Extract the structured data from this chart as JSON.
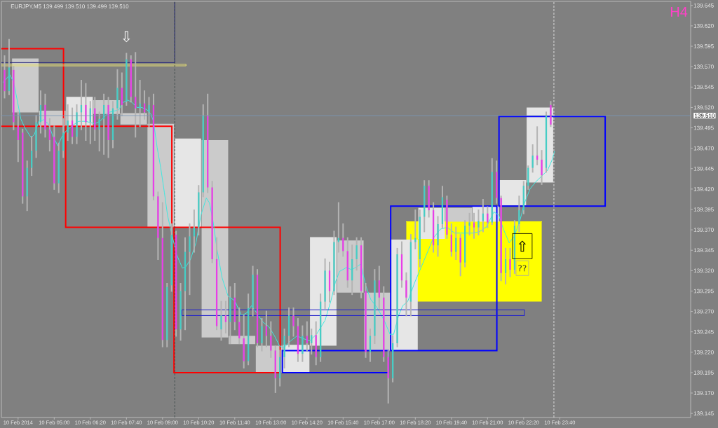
{
  "chart_data": {
    "type": "candlestick",
    "title": "EURJPY,M5 139.499 139.510 139.499 139.510",
    "xlim": [
      "2014-02-10T03:03",
      "2014-02-11T04:30"
    ],
    "ylim": [
      139.14,
      139.65
    ],
    "xticks": [
      {
        "value": "2014-02-10T03:40",
        "label": "10 Feb 2014"
      },
      {
        "value": "2014-02-10T05:00",
        "label": "10 Feb 05:00"
      },
      {
        "value": "2014-02-10T06:20",
        "label": "10 Feb 06:20"
      },
      {
        "value": "2014-02-10T07:40",
        "label": "10 Feb 07:40"
      },
      {
        "value": "2014-02-10T09:00",
        "label": "10 Feb 09:00"
      },
      {
        "value": "2014-02-10T10:20",
        "label": "10 Feb 10:20"
      },
      {
        "value": "2014-02-10T11:40",
        "label": "10 Feb 11:40"
      },
      {
        "value": "2014-02-10T13:00",
        "label": "10 Feb 13:00"
      },
      {
        "value": "2014-02-10T14:20",
        "label": "10 Feb 14:20"
      },
      {
        "value": "2014-02-10T15:40",
        "label": "10 Feb 15:40"
      },
      {
        "value": "2014-02-10T17:00",
        "label": "10 Feb 17:00"
      },
      {
        "value": "2014-02-10T18:20",
        "label": "10 Feb 18:20"
      },
      {
        "value": "2014-02-10T19:40",
        "label": "10 Feb 19:40"
      },
      {
        "value": "2014-02-10T21:00",
        "label": "10 Feb 21:00"
      },
      {
        "value": "2014-02-10T22:20",
        "label": "10 Feb 22:20"
      },
      {
        "value": "2014-02-10T23:40",
        "label": "10 Feb 23:40"
      }
    ],
    "yticks": [
      139.145,
      {
        "value": 139.17,
        "label": "139.170"
      },
      139.195,
      {
        "value": 139.22,
        "label": "139.220"
      },
      139.245,
      {
        "value": 139.27,
        "label": "139.270"
      },
      139.295,
      {
        "value": 139.32,
        "label": "139.320"
      },
      139.345,
      {
        "value": 139.37,
        "label": "139.370"
      },
      139.395,
      {
        "value": 139.42,
        "label": "139.420"
      },
      139.445,
      {
        "value": 139.47,
        "label": "139.470"
      },
      139.495,
      {
        "value": 139.52,
        "label": "139.520"
      },
      139.545,
      {
        "value": 139.57,
        "label": "139.570"
      },
      139.595,
      {
        "value": 139.62,
        "label": "139.620"
      },
      139.645
    ],
    "series": [
      {
        "type": "line",
        "x": [
          "2014-02-10T18:00",
          "2014-02-10T23:00"
        ],
        "values": [
          139.38,
          139.38
        ],
        "lower": [
          139.282,
          139.282
        ],
        "upper": [
          139.38,
          139.38
        ],
        "color": "#ffff00"
      },
      {
        "type": "candlestick",
        "x": [
          "2014-02-10T03:56",
          "2014-02-10T04:56",
          "2014-02-10T05:56",
          "2014-02-10T06:56",
          "2014-02-10T07:56",
          "2014-02-10T08:56",
          "2014-02-10T09:56",
          "2014-02-10T10:56",
          "2014-02-10T11:56",
          "2014-02-10T12:56",
          "2014-02-10T13:56",
          "2014-02-10T14:56",
          "2014-02-10T15:56",
          "2014-02-10T16:56",
          "2014-02-10T17:56",
          "2014-02-10T18:56",
          "2014-02-10T19:56",
          "2014-02-10T20:56",
          "2014-02-10T21:56",
          "2014-02-10T22:56"
        ],
        "ohlc": [
          [
            139.58,
            139.58,
            139.514,
            139.514
          ],
          [
            139.516,
            139.516,
            139.497,
            139.497
          ],
          [
            139.497,
            139.533,
            139.497,
            139.533
          ],
          [
            139.529,
            139.529,
            139.512,
            139.512
          ],
          [
            139.513,
            139.513,
            139.499,
            139.499
          ],
          [
            139.5,
            139.5,
            139.373,
            139.373
          ],
          [
            139.373,
            139.482,
            139.373,
            139.482
          ],
          [
            139.48,
            139.48,
            139.238,
            139.238
          ],
          [
            139.24,
            139.24,
            139.23,
            139.23
          ],
          [
            139.228,
            139.228,
            139.195,
            139.195
          ],
          [
            139.195,
            139.229,
            139.195,
            139.229
          ],
          [
            139.228,
            139.361,
            139.228,
            139.361
          ],
          [
            139.357,
            139.357,
            139.293,
            139.293
          ],
          [
            139.293,
            139.293,
            139.222,
            139.222
          ],
          [
            139.222,
            139.358,
            139.222,
            139.358
          ],
          [
            139.359,
            139.397,
            139.359,
            139.397
          ],
          [
            139.397,
            139.397,
            139.38,
            139.38
          ],
          [
            139.38,
            139.399,
            139.38,
            139.399
          ],
          [
            139.4,
            139.431,
            139.4,
            139.431
          ],
          [
            139.428,
            139.52,
            139.428,
            139.52
          ]
        ],
        "colors": [
          "#cbcbcb",
          "#cbcbcb",
          "#e6e6e6",
          "#cbcbcb",
          "#cbcbcb",
          "#cbcbcb",
          "#e6e6e6",
          "#cbcbcb",
          "#cbcbcb",
          "#cbcbcb",
          "#e6e6e6",
          "#e6e6e6",
          "#cbcbcb",
          "#cbcbcb",
          "#e6e6e6",
          "#e6e6e6",
          "#cbcbcb",
          "#e6e6e6",
          "#e6e6e6",
          "#e6e6e6"
        ]
      },
      {
        "type": "bar",
        "x": [
          "2014-02-10T03:23",
          "2014-02-10T07:23",
          "2014-02-10T11:23",
          "2014-02-10T15:23",
          "2014-02-10T19:23",
          "2014-02-10T23:23"
        ],
        "base": [
          139.592,
          139.497,
          139.373,
          139.195,
          139.222,
          139.399
        ],
        "values": [
          -0.095,
          -0.124,
          -0.178,
          0.027,
          0.177,
          0.11
        ],
        "colors": [
          "#ff0000",
          "#ff0000",
          "#ff0000",
          "#0000ff",
          "#0000ff",
          "#0000ff"
        ],
        "line_style": "solid"
      },
      {
        "type": "line",
        "x": [
          "2014-02-10T03:07",
          "2014-02-10T03:22",
          "2014-02-10T03:30",
          "2014-02-10T03:38",
          "2014-02-10T03:46",
          "2014-02-10T03:55",
          "2014-02-10T04:09",
          "2014-02-10T04:16",
          "2014-02-10T04:26",
          "2014-02-10T04:37",
          "2014-02-10T04:47",
          "2014-02-10T04:57",
          "2014-02-10T05:08",
          "2014-02-10T05:16",
          "2014-02-10T05:26",
          "2014-02-10T05:38",
          "2014-02-10T05:54",
          "2014-02-10T06:10",
          "2014-02-10T06:30",
          "2014-02-10T06:41",
          "2014-02-10T07:01",
          "2014-02-10T07:23",
          "2014-02-10T07:32",
          "2014-02-10T07:43",
          "2014-02-10T07:53",
          "2014-02-10T08:03",
          "2014-02-10T08:14",
          "2014-02-10T08:26",
          "2014-02-10T08:34",
          "2014-02-10T08:40",
          "2014-02-10T08:48",
          "2014-02-10T08:56",
          "2014-02-10T09:04",
          "2014-02-10T09:11",
          "2014-02-10T09:19",
          "2014-02-10T09:31",
          "2014-02-10T09:44",
          "2014-02-10T09:52",
          "2014-02-10T10:02",
          "2014-02-10T10:14",
          "2014-02-10T10:25",
          "2014-02-10T10:37",
          "2014-02-10T10:44",
          "2014-02-10T10:52",
          "2014-02-10T11:01",
          "2014-02-10T11:12",
          "2014-02-10T11:25",
          "2014-02-10T11:40",
          "2014-02-10T11:55",
          "2014-02-10T12:06",
          "2014-02-10T12:17",
          "2014-02-10T12:29",
          "2014-02-10T12:42",
          "2014-02-10T12:56",
          "2014-02-10T13:08",
          "2014-02-10T13:19",
          "2014-02-10T13:28",
          "2014-02-10T13:44",
          "2014-02-10T13:58",
          "2014-02-10T14:10",
          "2014-02-10T14:26",
          "2014-02-10T14:41",
          "2014-02-10T15:00",
          "2014-02-10T15:13",
          "2014-02-10T15:23",
          "2014-02-10T15:32",
          "2014-02-10T15:48",
          "2014-02-10T15:59",
          "2014-02-10T16:11",
          "2014-02-10T16:19",
          "2014-02-10T16:30",
          "2014-02-10T16:41",
          "2014-02-10T16:56",
          "2014-02-10T17:11",
          "2014-02-10T17:24",
          "2014-02-10T17:32",
          "2014-02-10T17:43",
          "2014-02-10T17:52",
          "2014-02-10T18:03",
          "2014-02-10T18:19",
          "2014-02-10T18:29",
          "2014-02-10T18:45",
          "2014-02-10T19:00",
          "2014-02-10T19:16",
          "2014-02-10T19:31",
          "2014-02-10T19:47",
          "2014-02-10T20:11",
          "2014-02-10T20:27",
          "2014-02-10T20:43",
          "2014-02-10T20:58",
          "2014-02-10T21:14",
          "2014-02-10T21:25",
          "2014-02-10T21:35",
          "2014-02-10T21:48",
          "2014-02-10T21:59",
          "2014-02-10T22:11",
          "2014-02-10T22:22",
          "2014-02-10T22:34",
          "2014-02-10T22:47",
          "2014-02-10T23:02",
          "2014-02-10T23:13",
          "2014-02-10T23:24",
          "2014-02-10T23:28"
        ],
        "values": [
          139.551,
          139.56,
          139.551,
          139.529,
          139.506,
          139.495,
          139.483,
          139.487,
          139.503,
          139.505,
          139.5,
          139.485,
          139.473,
          139.483,
          139.491,
          139.497,
          139.503,
          139.503,
          139.5,
          139.503,
          139.514,
          139.517,
          139.526,
          139.529,
          139.526,
          139.52,
          139.52,
          139.517,
          139.512,
          139.503,
          139.471,
          139.446,
          139.416,
          139.388,
          139.368,
          139.34,
          139.323,
          139.325,
          139.334,
          139.354,
          139.388,
          139.409,
          139.403,
          139.38,
          139.345,
          139.311,
          139.289,
          139.283,
          139.265,
          139.268,
          139.277,
          139.268,
          139.257,
          139.251,
          139.24,
          139.228,
          139.225,
          139.234,
          139.24,
          139.237,
          139.234,
          139.242,
          139.259,
          139.283,
          139.306,
          139.319,
          139.324,
          139.321,
          139.325,
          139.328,
          139.302,
          139.285,
          139.274,
          139.259,
          139.242,
          139.242,
          139.265,
          139.277,
          139.282,
          139.306,
          139.319,
          139.34,
          139.36,
          139.371,
          139.373,
          139.366,
          139.366,
          139.366,
          139.368,
          139.374,
          139.392,
          139.388,
          139.371,
          139.354,
          139.362,
          139.38,
          139.403,
          139.42,
          139.429,
          139.437,
          139.443,
          139.457,
          139.466
        ],
        "color": "#40e8e0"
      },
      {
        "type": "line",
        "x": [
          "2014-02-10T15:00",
          "2014-02-10T22:22",
          "2014-02-10T22:22",
          "2014-02-10T09:43",
          "2014-02-10T09:43",
          "2014-02-10T14:59"
        ],
        "values": [
          139.272,
          139.272,
          139.265,
          139.265,
          139.272,
          139.272
        ],
        "color": "#2222cc"
      },
      {
        "type": "line",
        "x": [
          "2014-02-10T03:03",
          "2014-02-10T09:52",
          "2014-02-10T09:52",
          "2014-02-10T03:03"
        ],
        "values": [
          139.573,
          139.573,
          139.571,
          139.571
        ],
        "color": "#e6df72"
      },
      {
        "type": "line",
        "x": [
          "2014-02-10T03:03",
          "2014-02-10T09:27",
          "2014-02-10T09:27"
        ],
        "values": [
          139.575,
          139.575,
          139.649
        ],
        "color": "#22227a"
      },
      {
        "x": [
          "2014-02-10T03:10",
          "2014-02-10T03:20",
          "2014-02-10T03:30",
          "2014-02-10T03:40",
          "2014-02-10T03:50",
          "2014-02-10T04:00",
          "2014-02-10T04:10",
          "2014-02-10T04:20",
          "2014-02-10T04:30",
          "2014-02-10T04:40",
          "2014-02-10T04:50",
          "2014-02-10T05:00",
          "2014-02-10T05:10",
          "2014-02-10T05:20",
          "2014-02-10T05:30",
          "2014-02-10T05:40",
          "2014-02-10T05:50",
          "2014-02-10T06:00",
          "2014-02-10T06:10",
          "2014-02-10T06:20",
          "2014-02-10T06:30",
          "2014-02-10T06:40",
          "2014-02-10T06:50",
          "2014-02-10T07:00",
          "2014-02-10T07:10",
          "2014-02-10T07:20",
          "2014-02-10T07:30",
          "2014-02-10T07:40",
          "2014-02-10T07:50",
          "2014-02-10T08:00",
          "2014-02-10T08:10",
          "2014-02-10T08:20",
          "2014-02-10T08:30",
          "2014-02-10T08:40",
          "2014-02-10T08:50",
          "2014-02-10T09:00",
          "2014-02-10T09:10",
          "2014-02-10T09:20",
          "2014-02-10T09:30",
          "2014-02-10T09:40",
          "2014-02-10T09:50",
          "2014-02-10T10:00",
          "2014-02-10T10:10",
          "2014-02-10T10:20",
          "2014-02-10T10:30",
          "2014-02-10T10:40",
          "2014-02-10T10:50",
          "2014-02-10T11:00",
          "2014-02-10T11:10",
          "2014-02-10T11:20",
          "2014-02-10T11:30",
          "2014-02-10T11:40",
          "2014-02-10T11:50",
          "2014-02-10T12:00",
          "2014-02-10T12:10",
          "2014-02-10T12:20",
          "2014-02-10T12:30",
          "2014-02-10T12:40",
          "2014-02-10T12:50",
          "2014-02-10T13:00",
          "2014-02-10T13:10",
          "2014-02-10T13:20",
          "2014-02-10T13:30",
          "2014-02-10T13:40",
          "2014-02-10T13:50",
          "2014-02-10T14:00",
          "2014-02-10T14:10",
          "2014-02-10T14:20",
          "2014-02-10T14:30",
          "2014-02-10T14:40",
          "2014-02-10T14:50",
          "2014-02-10T15:00",
          "2014-02-10T15:10",
          "2014-02-10T15:20",
          "2014-02-10T15:30",
          "2014-02-10T15:40",
          "2014-02-10T15:50",
          "2014-02-10T16:00",
          "2014-02-10T16:10",
          "2014-02-10T16:20",
          "2014-02-10T16:30",
          "2014-02-10T16:40",
          "2014-02-10T16:50",
          "2014-02-10T17:00",
          "2014-02-10T17:10",
          "2014-02-10T17:20",
          "2014-02-10T17:30",
          "2014-02-10T17:40",
          "2014-02-10T17:50",
          "2014-02-10T18:00",
          "2014-02-10T18:10",
          "2014-02-10T18:20",
          "2014-02-10T18:30",
          "2014-02-10T18:40",
          "2014-02-10T18:50",
          "2014-02-10T19:00",
          "2014-02-10T19:10",
          "2014-02-10T19:20",
          "2014-02-10T19:30",
          "2014-02-10T19:40",
          "2014-02-10T19:50",
          "2014-02-10T20:00",
          "2014-02-10T20:10",
          "2014-02-10T20:20",
          "2014-02-10T20:30",
          "2014-02-10T20:40",
          "2014-02-10T20:50",
          "2014-02-10T21:00",
          "2014-02-10T21:10",
          "2014-02-10T21:20",
          "2014-02-10T21:30",
          "2014-02-10T21:40",
          "2014-02-10T21:50",
          "2014-02-10T22:00",
          "2014-02-10T22:10",
          "2014-02-10T22:20",
          "2014-02-10T22:30",
          "2014-02-10T22:40",
          "2014-02-10T22:50",
          "2014-02-10T23:00",
          "2014-02-10T23:10",
          "2014-02-10T23:20"
        ],
        "ohlc": [
          [
            139.566,
            139.583,
            139.532,
            139.54
          ],
          [
            139.54,
            139.603,
            139.536,
            139.569
          ],
          [
            139.566,
            139.57,
            139.493,
            139.502
          ],
          [
            139.497,
            139.514,
            139.454,
            139.48
          ],
          [
            139.489,
            139.493,
            139.403,
            139.411
          ],
          [
            139.411,
            139.454,
            139.394,
            139.446
          ],
          [
            139.446,
            139.484,
            139.437,
            139.467
          ],
          [
            139.467,
            139.51,
            139.459,
            139.502
          ],
          [
            139.502,
            139.54,
            139.489,
            139.523
          ],
          [
            139.523,
            139.536,
            139.484,
            139.493
          ],
          [
            139.493,
            139.506,
            139.467,
            139.48
          ],
          [
            139.484,
            139.497,
            139.42,
            139.427
          ],
          [
            139.427,
            139.476,
            139.416,
            139.467
          ],
          [
            139.467,
            139.506,
            139.459,
            139.489
          ],
          [
            139.489,
            139.523,
            139.48,
            139.504
          ],
          [
            139.504,
            139.519,
            139.476,
            139.484
          ],
          [
            139.484,
            139.523,
            139.476,
            139.514
          ],
          [
            139.514,
            139.553,
            139.493,
            139.523
          ],
          [
            139.523,
            139.549,
            139.48,
            139.502
          ],
          [
            139.502,
            139.527,
            139.476,
            139.519
          ],
          [
            139.519,
            139.532,
            139.48,
            139.493
          ],
          [
            139.493,
            139.514,
            139.467,
            139.506
          ],
          [
            139.506,
            139.536,
            139.463,
            139.523
          ],
          [
            139.523,
            139.532,
            139.459,
            139.48
          ],
          [
            139.48,
            139.527,
            139.471,
            139.519
          ],
          [
            139.519,
            139.566,
            139.506,
            139.544
          ],
          [
            139.544,
            139.562,
            139.51,
            139.523
          ],
          [
            139.527,
            139.586,
            139.523,
            139.579
          ],
          [
            139.579,
            139.583,
            139.527,
            139.533
          ],
          [
            139.533,
            139.587,
            139.484,
            139.519
          ],
          [
            139.519,
            139.553,
            139.497,
            139.525
          ],
          [
            139.525,
            139.54,
            139.506,
            139.514
          ],
          [
            139.514,
            139.532,
            139.497,
            139.523
          ],
          [
            139.523,
            139.536,
            139.407,
            139.411
          ],
          [
            139.411,
            139.416,
            139.334,
            139.36
          ],
          [
            139.36,
            139.403,
            139.227,
            139.235
          ],
          [
            139.235,
            139.304,
            139.227,
            139.3
          ],
          [
            139.302,
            139.377,
            139.295,
            139.364
          ],
          [
            139.364,
            139.368,
            139.24,
            139.248
          ],
          [
            139.248,
            139.304,
            139.235,
            139.295
          ],
          [
            139.295,
            139.36,
            139.248,
            139.343
          ],
          [
            139.343,
            139.377,
            139.291,
            139.362
          ],
          [
            139.362,
            139.394,
            139.343,
            139.373
          ],
          [
            139.373,
            139.424,
            139.364,
            139.416
          ],
          [
            139.416,
            139.523,
            139.411,
            139.51
          ],
          [
            139.51,
            139.536,
            139.416,
            139.422
          ],
          [
            139.422,
            139.429,
            139.33,
            139.334
          ],
          [
            139.334,
            139.36,
            139.248,
            139.252
          ],
          [
            139.248,
            139.282,
            139.235,
            139.265
          ],
          [
            139.265,
            139.282,
            139.244,
            139.257
          ],
          [
            139.257,
            139.3,
            139.231,
            139.287
          ],
          [
            139.287,
            139.304,
            139.248,
            139.257
          ],
          [
            139.257,
            139.274,
            139.231,
            139.237
          ],
          [
            139.237,
            139.265,
            139.201,
            139.209
          ],
          [
            139.209,
            139.291,
            139.205,
            139.274
          ],
          [
            139.274,
            139.325,
            139.265,
            139.315
          ],
          [
            139.315,
            139.321,
            139.227,
            139.231
          ],
          [
            139.231,
            139.261,
            139.222,
            139.252
          ],
          [
            139.252,
            139.27,
            139.227,
            139.24
          ],
          [
            139.24,
            139.257,
            139.214,
            139.222
          ],
          [
            139.222,
            139.227,
            139.171,
            139.188
          ],
          [
            139.188,
            139.222,
            139.179,
            139.214
          ],
          [
            139.214,
            139.248,
            139.201,
            139.24
          ],
          [
            139.24,
            139.274,
            139.227,
            139.265
          ],
          [
            139.265,
            139.274,
            139.24,
            139.252
          ],
          [
            139.252,
            139.261,
            139.209,
            139.218
          ],
          [
            139.218,
            139.252,
            139.209,
            139.24
          ],
          [
            139.24,
            139.257,
            139.222,
            139.231
          ],
          [
            139.231,
            139.248,
            139.218,
            139.241
          ],
          [
            139.241,
            139.257,
            139.205,
            139.214
          ],
          [
            139.214,
            139.291,
            139.209,
            139.282
          ],
          [
            139.282,
            139.334,
            139.274,
            139.32
          ],
          [
            139.32,
            139.33,
            139.282,
            139.295
          ],
          [
            139.295,
            139.368,
            139.291,
            139.355
          ],
          [
            139.355,
            139.403,
            139.343,
            139.36
          ],
          [
            139.36,
            139.377,
            139.338,
            139.344
          ],
          [
            139.344,
            139.36,
            139.3,
            139.308
          ],
          [
            139.308,
            139.351,
            139.291,
            139.334
          ],
          [
            139.334,
            139.36,
            139.321,
            139.351
          ],
          [
            139.351,
            139.36,
            139.287,
            139.295
          ],
          [
            139.295,
            139.304,
            139.214,
            139.22
          ],
          [
            139.22,
            139.248,
            139.209,
            139.24
          ],
          [
            139.24,
            139.321,
            139.231,
            139.308
          ],
          [
            139.308,
            139.325,
            139.274,
            139.287
          ],
          [
            139.287,
            139.3,
            139.209,
            139.214
          ],
          [
            139.214,
            139.222,
            139.158,
            139.188
          ],
          [
            139.188,
            139.24,
            139.184,
            139.231
          ],
          [
            139.231,
            139.347,
            139.227,
            139.34
          ],
          [
            139.34,
            139.355,
            139.3,
            139.308
          ],
          [
            139.308,
            139.317,
            139.265,
            139.287
          ],
          [
            139.282,
            139.364,
            139.265,
            139.355
          ],
          [
            139.355,
            139.394,
            139.347,
            139.36
          ],
          [
            139.334,
            139.394,
            139.325,
            139.386
          ],
          [
            139.386,
            139.43,
            139.368,
            139.424
          ],
          [
            139.424,
            139.43,
            139.386,
            139.394
          ],
          [
            139.394,
            139.403,
            139.343,
            139.351
          ],
          [
            139.351,
            139.386,
            139.338,
            139.377
          ],
          [
            139.377,
            139.423,
            139.373,
            139.41
          ],
          [
            139.407,
            139.411,
            139.36,
            139.364
          ],
          [
            139.364,
            139.377,
            139.338,
            139.343
          ],
          [
            139.343,
            139.373,
            139.334,
            139.36
          ],
          [
            139.36,
            139.364,
            139.314,
            139.33
          ],
          [
            139.33,
            139.381,
            139.325,
            139.375
          ],
          [
            139.375,
            139.39,
            139.364,
            139.379
          ],
          [
            139.379,
            139.39,
            139.36,
            139.373
          ],
          [
            139.373,
            139.394,
            139.364,
            139.381
          ],
          [
            139.381,
            139.407,
            139.368,
            139.39
          ],
          [
            139.39,
            139.398,
            139.373,
            139.379
          ],
          [
            139.379,
            139.457,
            139.377,
            139.441
          ],
          [
            139.441,
            139.454,
            139.403,
            139.409
          ],
          [
            139.409,
            139.411,
            139.308,
            139.317
          ],
          [
            139.317,
            139.347,
            139.304,
            139.334
          ],
          [
            139.334,
            139.347,
            139.313,
            139.321
          ],
          [
            139.321,
            139.381,
            139.317,
            139.375
          ],
          [
            139.377,
            139.411,
            139.368,
            139.394
          ],
          [
            139.394,
            139.429,
            139.39,
            139.424
          ],
          [
            139.424,
            139.448,
            139.42,
            139.446
          ],
          [
            139.446,
            139.474,
            139.441,
            139.461
          ],
          [
            139.461,
            139.496,
            139.45,
            139.456
          ],
          [
            139.456,
            139.467,
            139.426,
            139.437
          ],
          [
            139.446,
            139.514,
            139.441,
            139.51
          ],
          [
            139.523,
            139.527,
            139.497,
            139.499
          ]
        ],
        "color": "#b4b4b4",
        "colors": [
          "#e83ee8",
          "#46cdc5",
          "#e83ee8",
          "#e83ee8",
          "#e83ee8",
          "#46cdc5",
          "#46cdc5",
          "#46cdc5",
          "#46cdc5",
          "#e83ee8",
          "#e83ee8",
          "#e83ee8",
          "#46cdc5",
          "#46cdc5",
          "#46cdc5",
          "#e83ee8",
          "#46cdc5",
          "#46cdc5",
          "#e83ee8",
          "#46cdc5",
          "#e83ee8",
          "#46cdc5",
          "#46cdc5",
          "#e83ee8",
          "#46cdc5",
          "#46cdc5",
          "#e83ee8",
          "#46cdc5",
          "#e83ee8",
          "#e83ee8",
          "#46cdc5",
          "#e83ee8",
          "#46cdc5",
          "#e83ee8",
          "#e83ee8",
          "#e83ee8",
          "#46cdc5",
          "#46cdc5",
          "#e83ee8",
          "#46cdc5",
          "#46cdc5",
          "#46cdc5",
          "#46cdc5",
          "#46cdc5",
          "#46cdc5",
          "#e83ee8",
          "#e83ee8",
          "#e83ee8",
          "#46cdc5",
          "#e83ee8",
          "#46cdc5",
          "#e83ee8",
          "#e83ee8",
          "#e83ee8",
          "#46cdc5",
          "#46cdc5",
          "#e83ee8",
          "#46cdc5",
          "#e83ee8",
          "#e83ee8",
          "#e83ee8",
          "#46cdc5",
          "#46cdc5",
          "#46cdc5",
          "#e83ee8",
          "#e83ee8",
          "#46cdc5",
          "#e83ee8",
          "#46cdc5",
          "#e83ee8",
          "#46cdc5",
          "#46cdc5",
          "#e83ee8",
          "#46cdc5",
          "#46cdc5",
          "#e83ee8",
          "#e83ee8",
          "#46cdc5",
          "#46cdc5",
          "#e83ee8",
          "#e83ee8",
          "#46cdc5",
          "#46cdc5",
          "#e83ee8",
          "#e83ee8",
          "#e83ee8",
          "#46cdc5",
          "#46cdc5",
          "#e83ee8",
          "#e83ee8",
          "#46cdc5",
          "#46cdc5",
          "#46cdc5",
          "#46cdc5",
          "#e83ee8",
          "#e83ee8",
          "#46cdc5",
          "#46cdc5",
          "#e83ee8",
          "#e83ee8",
          "#46cdc5",
          "#e83ee8",
          "#46cdc5",
          "#46cdc5",
          "#e83ee8",
          "#46cdc5",
          "#46cdc5",
          "#e83ee8",
          "#46cdc5",
          "#e83ee8",
          "#e83ee8",
          "#46cdc5",
          "#e83ee8",
          "#46cdc5",
          "#46cdc5",
          "#46cdc5",
          "#46cdc5",
          "#46cdc5",
          "#e83ee8",
          "#e83ee8",
          "#46cdc5",
          "#e83ee8"
        ]
      }
    ],
    "ref_lines": [
      {
        "axis": "y",
        "value": 139.51,
        "label": "139.510",
        "color": "#7898b8"
      },
      {
        "axis": "x",
        "value": "2014-02-10T09:27",
        "color": "#3a4848",
        "line_style": "dashed"
      },
      {
        "axis": "x",
        "value": "2014-02-10T23:27",
        "color": "#f0f0f0",
        "line_style": "dashed"
      }
    ],
    "annotations": [
      "H4",
      {
        "text": "⇩",
        "x": "2014-02-10T07:40",
        "y": 139.586
      },
      {
        "text": "⇧",
        "x": "2014-02-10T22:17",
        "y": 139.35
      },
      {
        "text": "??",
        "x": "2014-02-10T22:17",
        "y": 139.323
      }
    ]
  }
}
